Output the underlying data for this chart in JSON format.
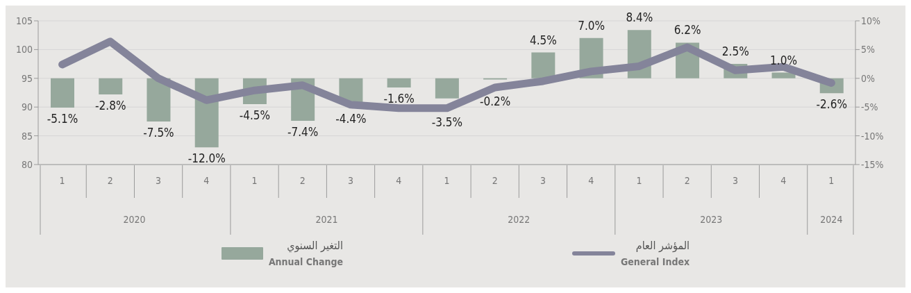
{
  "chart_data": {
    "type": "bar",
    "categories": [
      "1",
      "2",
      "3",
      "4",
      "1",
      "2",
      "3",
      "4",
      "1",
      "2",
      "3",
      "4",
      "1",
      "2",
      "3",
      "4",
      "1"
    ],
    "annotations": [
      "2020",
      "2021",
      "2022",
      "2023",
      "2024"
    ],
    "series": [
      {
        "name": "المؤشر العام\nGeneral Index",
        "type": "line",
        "color": "#84849a",
        "values": [
          97.4,
          101.4,
          95.0,
          91.2,
          92.9,
          93.8,
          90.4,
          89.8,
          89.8,
          93.4,
          94.5,
          96.2,
          97.1,
          100.4,
          96.4,
          97.0,
          94.2
        ]
      },
      {
        "name": "التغير السنوي\nAnnual Change",
        "axis": "y2",
        "color": "#96a89c",
        "values": [
          -5.1,
          -2.8,
          -7.5,
          -12.0,
          -4.5,
          -7.4,
          -4.4,
          -1.6,
          -3.5,
          -0.2,
          4.5,
          7.0,
          8.4,
          6.2,
          2.5,
          1.0,
          -2.6
        ],
        "value_labels": [
          "-5.1%",
          "-2.8%",
          "-7.5%",
          "-12.0%",
          "-4.5%",
          "-7.4%",
          "-4.4%",
          "-1.6%",
          "-3.5%",
          "-0.2%",
          "4.5%",
          "7.0%",
          "8.4%",
          "6.2%",
          "2.5%",
          "1.0%",
          "-2.6%"
        ]
      }
    ],
    "ylim": [
      80,
      105
    ],
    "yticks": [
      80,
      85,
      90,
      95,
      100,
      105
    ],
    "y2lim": [
      -15,
      10
    ],
    "y2ticks": [
      {
        "value": -15,
        "label": "-15%"
      },
      {
        "value": -10,
        "label": "-10%"
      },
      {
        "value": -5,
        "label": "-5%"
      },
      {
        "value": 0,
        "label": "0%"
      },
      {
        "value": 5,
        "label": "5%"
      },
      {
        "value": 10,
        "label": "10%"
      }
    ],
    "grid": "y",
    "legend": "bottom"
  }
}
